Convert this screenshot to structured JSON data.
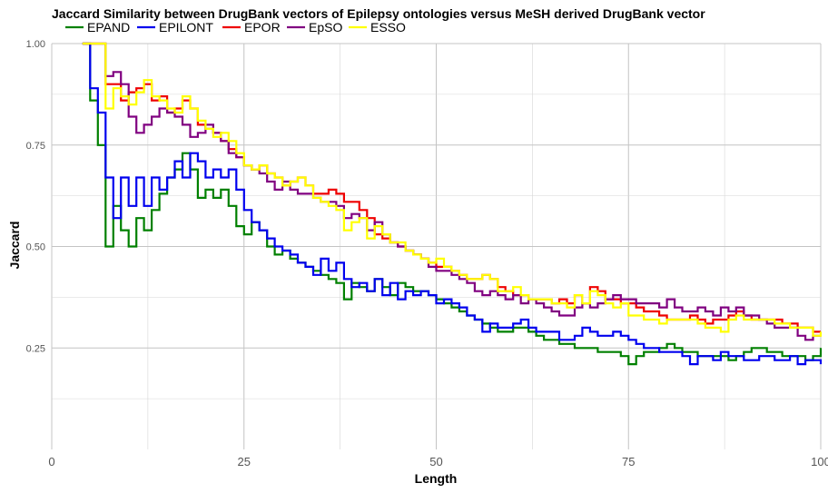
{
  "chart_data": {
    "type": "line",
    "step": true,
    "title": "Jaccard Similarity between DrugBank vectors of Epilepsy ontologies versus MeSH derived DrugBank vector",
    "xlabel": "Length",
    "ylabel": "Jaccard",
    "xlim": [
      0,
      100
    ],
    "ylim": [
      0.0,
      1.0
    ],
    "xticks": [
      0,
      25,
      50,
      75,
      100
    ],
    "xtick_labels": [
      "0",
      "25",
      "50",
      "75",
      "100"
    ],
    "yticks": [
      0.25,
      0.5,
      0.75,
      1.0
    ],
    "ytick_labels": [
      "0.25",
      "0.50",
      "0.75",
      "1.00"
    ],
    "grid": true,
    "legend_position": "top-left",
    "series": [
      {
        "name": "EPAND",
        "color": "#008000",
        "x": [
          4,
          5,
          6,
          7,
          8,
          9,
          10,
          11,
          12,
          13,
          14,
          15,
          16,
          17,
          18,
          19,
          20,
          21,
          22,
          23,
          24,
          25,
          26,
          27,
          28,
          29,
          30,
          31,
          32,
          33,
          34,
          35,
          36,
          37,
          38,
          39,
          40,
          41,
          42,
          43,
          44,
          45,
          46,
          47,
          48,
          49,
          50,
          51,
          52,
          53,
          54,
          55,
          56,
          57,
          58,
          59,
          60,
          61,
          62,
          63,
          64,
          65,
          66,
          67,
          68,
          69,
          70,
          71,
          72,
          73,
          74,
          75,
          76,
          77,
          78,
          79,
          80,
          81,
          82,
          83,
          84,
          85,
          86,
          87,
          88,
          89,
          90,
          91,
          92,
          93,
          94,
          95,
          96,
          97,
          98,
          99,
          100
        ],
        "y": [
          1.0,
          0.86,
          0.75,
          0.5,
          0.6,
          0.54,
          0.5,
          0.57,
          0.54,
          0.59,
          0.63,
          0.67,
          0.69,
          0.73,
          0.69,
          0.62,
          0.64,
          0.62,
          0.64,
          0.6,
          0.55,
          0.53,
          0.56,
          0.54,
          0.5,
          0.48,
          0.49,
          0.47,
          0.46,
          0.45,
          0.44,
          0.43,
          0.42,
          0.41,
          0.37,
          0.41,
          0.4,
          0.39,
          0.42,
          0.4,
          0.38,
          0.41,
          0.4,
          0.39,
          0.39,
          0.38,
          0.37,
          0.36,
          0.35,
          0.34,
          0.33,
          0.32,
          0.31,
          0.3,
          0.29,
          0.29,
          0.3,
          0.3,
          0.29,
          0.28,
          0.27,
          0.27,
          0.26,
          0.26,
          0.25,
          0.25,
          0.25,
          0.24,
          0.24,
          0.24,
          0.23,
          0.21,
          0.23,
          0.24,
          0.24,
          0.25,
          0.26,
          0.25,
          0.24,
          0.24,
          0.23,
          0.23,
          0.23,
          0.23,
          0.22,
          0.23,
          0.24,
          0.25,
          0.25,
          0.24,
          0.24,
          0.23,
          0.23,
          0.23,
          0.22,
          0.23,
          0.25
        ]
      },
      {
        "name": "EPILONT",
        "color": "#0000ee",
        "x": [
          4,
          5,
          6,
          7,
          8,
          9,
          10,
          11,
          12,
          13,
          14,
          15,
          16,
          17,
          18,
          19,
          20,
          21,
          22,
          23,
          24,
          25,
          26,
          27,
          28,
          29,
          30,
          31,
          32,
          33,
          34,
          35,
          36,
          37,
          38,
          39,
          40,
          41,
          42,
          43,
          44,
          45,
          46,
          47,
          48,
          49,
          50,
          51,
          52,
          53,
          54,
          55,
          56,
          57,
          58,
          59,
          60,
          61,
          62,
          63,
          64,
          65,
          66,
          67,
          68,
          69,
          70,
          71,
          72,
          73,
          74,
          75,
          76,
          77,
          78,
          79,
          80,
          81,
          82,
          83,
          84,
          85,
          86,
          87,
          88,
          89,
          90,
          91,
          92,
          93,
          94,
          95,
          96,
          97,
          98,
          99,
          100
        ],
        "y": [
          1.0,
          0.89,
          0.83,
          0.67,
          0.57,
          0.67,
          0.6,
          0.67,
          0.6,
          0.67,
          0.64,
          0.67,
          0.71,
          0.67,
          0.73,
          0.71,
          0.67,
          0.69,
          0.67,
          0.69,
          0.64,
          0.59,
          0.56,
          0.54,
          0.52,
          0.5,
          0.49,
          0.48,
          0.46,
          0.45,
          0.43,
          0.47,
          0.44,
          0.46,
          0.42,
          0.4,
          0.41,
          0.39,
          0.42,
          0.38,
          0.41,
          0.37,
          0.39,
          0.38,
          0.39,
          0.38,
          0.36,
          0.37,
          0.36,
          0.35,
          0.33,
          0.32,
          0.29,
          0.31,
          0.3,
          0.3,
          0.31,
          0.32,
          0.3,
          0.29,
          0.29,
          0.29,
          0.27,
          0.27,
          0.28,
          0.3,
          0.29,
          0.28,
          0.28,
          0.29,
          0.28,
          0.27,
          0.26,
          0.25,
          0.25,
          0.24,
          0.24,
          0.24,
          0.23,
          0.21,
          0.23,
          0.23,
          0.22,
          0.24,
          0.23,
          0.23,
          0.22,
          0.22,
          0.23,
          0.23,
          0.22,
          0.22,
          0.23,
          0.21,
          0.22,
          0.22,
          0.21
        ]
      },
      {
        "name": "EPOR",
        "color": "#ee0000",
        "x": [
          4,
          5,
          6,
          7,
          8,
          9,
          10,
          11,
          12,
          13,
          14,
          15,
          16,
          17,
          18,
          19,
          20,
          21,
          22,
          23,
          24,
          25,
          26,
          27,
          28,
          29,
          30,
          31,
          32,
          33,
          34,
          35,
          36,
          37,
          38,
          39,
          40,
          41,
          42,
          43,
          44,
          45,
          46,
          47,
          48,
          49,
          50,
          51,
          52,
          53,
          54,
          55,
          56,
          57,
          58,
          59,
          60,
          61,
          62,
          63,
          64,
          65,
          66,
          67,
          68,
          69,
          70,
          71,
          72,
          73,
          74,
          75,
          76,
          77,
          78,
          79,
          80,
          81,
          82,
          83,
          84,
          85,
          86,
          87,
          88,
          89,
          90,
          91,
          92,
          93,
          94,
          95,
          96,
          97,
          98,
          99,
          100
        ],
        "y": [
          1.0,
          1.0,
          1.0,
          0.9,
          0.9,
          0.86,
          0.88,
          0.89,
          0.9,
          0.86,
          0.87,
          0.83,
          0.84,
          0.86,
          0.84,
          0.8,
          0.79,
          0.78,
          0.76,
          0.74,
          0.72,
          0.7,
          0.69,
          0.7,
          0.68,
          0.67,
          0.65,
          0.66,
          0.67,
          0.65,
          0.63,
          0.63,
          0.64,
          0.63,
          0.61,
          0.61,
          0.59,
          0.57,
          0.53,
          0.52,
          0.51,
          0.5,
          0.49,
          0.48,
          0.47,
          0.46,
          0.45,
          0.45,
          0.44,
          0.43,
          0.42,
          0.42,
          0.43,
          0.42,
          0.4,
          0.39,
          0.38,
          0.38,
          0.37,
          0.37,
          0.37,
          0.36,
          0.37,
          0.36,
          0.38,
          0.36,
          0.4,
          0.39,
          0.37,
          0.37,
          0.36,
          0.36,
          0.35,
          0.34,
          0.34,
          0.33,
          0.32,
          0.32,
          0.32,
          0.33,
          0.32,
          0.31,
          0.32,
          0.32,
          0.33,
          0.34,
          0.33,
          0.32,
          0.32,
          0.32,
          0.32,
          0.31,
          0.31,
          0.3,
          0.3,
          0.29,
          0.29
        ]
      },
      {
        "name": "EpSO",
        "color": "#800080",
        "x": [
          4,
          5,
          6,
          7,
          8,
          9,
          10,
          11,
          12,
          13,
          14,
          15,
          16,
          17,
          18,
          19,
          20,
          21,
          22,
          23,
          24,
          25,
          26,
          27,
          28,
          29,
          30,
          31,
          32,
          33,
          34,
          35,
          36,
          37,
          38,
          39,
          40,
          41,
          42,
          43,
          44,
          45,
          46,
          47,
          48,
          49,
          50,
          51,
          52,
          53,
          54,
          55,
          56,
          57,
          58,
          59,
          60,
          61,
          62,
          63,
          64,
          65,
          66,
          67,
          68,
          69,
          70,
          71,
          72,
          73,
          74,
          75,
          76,
          77,
          78,
          79,
          80,
          81,
          82,
          83,
          84,
          85,
          86,
          87,
          88,
          89,
          90,
          91,
          92,
          93,
          94,
          95,
          96,
          97,
          98,
          99,
          100
        ],
        "y": [
          1.0,
          1.0,
          1.0,
          0.92,
          0.93,
          0.9,
          0.82,
          0.78,
          0.8,
          0.82,
          0.84,
          0.83,
          0.82,
          0.8,
          0.77,
          0.78,
          0.8,
          0.78,
          0.76,
          0.73,
          0.72,
          0.7,
          0.69,
          0.68,
          0.66,
          0.64,
          0.66,
          0.64,
          0.63,
          0.63,
          0.62,
          0.61,
          0.61,
          0.6,
          0.57,
          0.58,
          0.57,
          0.54,
          0.56,
          0.53,
          0.51,
          0.5,
          0.49,
          0.48,
          0.47,
          0.45,
          0.44,
          0.44,
          0.43,
          0.42,
          0.41,
          0.39,
          0.38,
          0.39,
          0.38,
          0.37,
          0.38,
          0.36,
          0.37,
          0.36,
          0.35,
          0.34,
          0.33,
          0.33,
          0.35,
          0.36,
          0.35,
          0.36,
          0.37,
          0.38,
          0.37,
          0.37,
          0.36,
          0.36,
          0.36,
          0.35,
          0.37,
          0.35,
          0.34,
          0.34,
          0.35,
          0.34,
          0.33,
          0.35,
          0.34,
          0.35,
          0.33,
          0.33,
          0.32,
          0.31,
          0.3,
          0.3,
          0.3,
          0.28,
          0.27,
          0.28,
          0.28
        ]
      },
      {
        "name": "ESSO",
        "color": "#ffff00",
        "x": [
          4,
          5,
          6,
          7,
          8,
          9,
          10,
          11,
          12,
          13,
          14,
          15,
          16,
          17,
          18,
          19,
          20,
          21,
          22,
          23,
          24,
          25,
          26,
          27,
          28,
          29,
          30,
          31,
          32,
          33,
          34,
          35,
          36,
          37,
          38,
          39,
          40,
          41,
          42,
          43,
          44,
          45,
          46,
          47,
          48,
          49,
          50,
          51,
          52,
          53,
          54,
          55,
          56,
          57,
          58,
          59,
          60,
          61,
          62,
          63,
          64,
          65,
          66,
          67,
          68,
          69,
          70,
          71,
          72,
          73,
          74,
          75,
          76,
          77,
          78,
          79,
          80,
          81,
          82,
          83,
          84,
          85,
          86,
          87,
          88,
          89,
          90,
          91,
          92,
          93,
          94,
          95,
          96,
          97,
          98,
          99,
          100
        ],
        "y": [
          1.0,
          1.0,
          1.0,
          0.84,
          0.89,
          0.87,
          0.85,
          0.88,
          0.91,
          0.87,
          0.86,
          0.84,
          0.83,
          0.87,
          0.84,
          0.81,
          0.79,
          0.77,
          0.78,
          0.76,
          0.73,
          0.7,
          0.69,
          0.7,
          0.68,
          0.67,
          0.65,
          0.66,
          0.67,
          0.65,
          0.62,
          0.61,
          0.6,
          0.59,
          0.54,
          0.56,
          0.57,
          0.52,
          0.55,
          0.53,
          0.51,
          0.51,
          0.49,
          0.48,
          0.47,
          0.46,
          0.47,
          0.45,
          0.44,
          0.43,
          0.42,
          0.42,
          0.43,
          0.42,
          0.39,
          0.39,
          0.4,
          0.38,
          0.37,
          0.37,
          0.37,
          0.36,
          0.36,
          0.35,
          0.38,
          0.36,
          0.39,
          0.38,
          0.36,
          0.35,
          0.36,
          0.33,
          0.33,
          0.32,
          0.32,
          0.31,
          0.32,
          0.32,
          0.32,
          0.32,
          0.31,
          0.3,
          0.3,
          0.29,
          0.32,
          0.33,
          0.32,
          0.32,
          0.32,
          0.32,
          0.31,
          0.31,
          0.3,
          0.3,
          0.3,
          0.28,
          0.29
        ]
      }
    ]
  }
}
